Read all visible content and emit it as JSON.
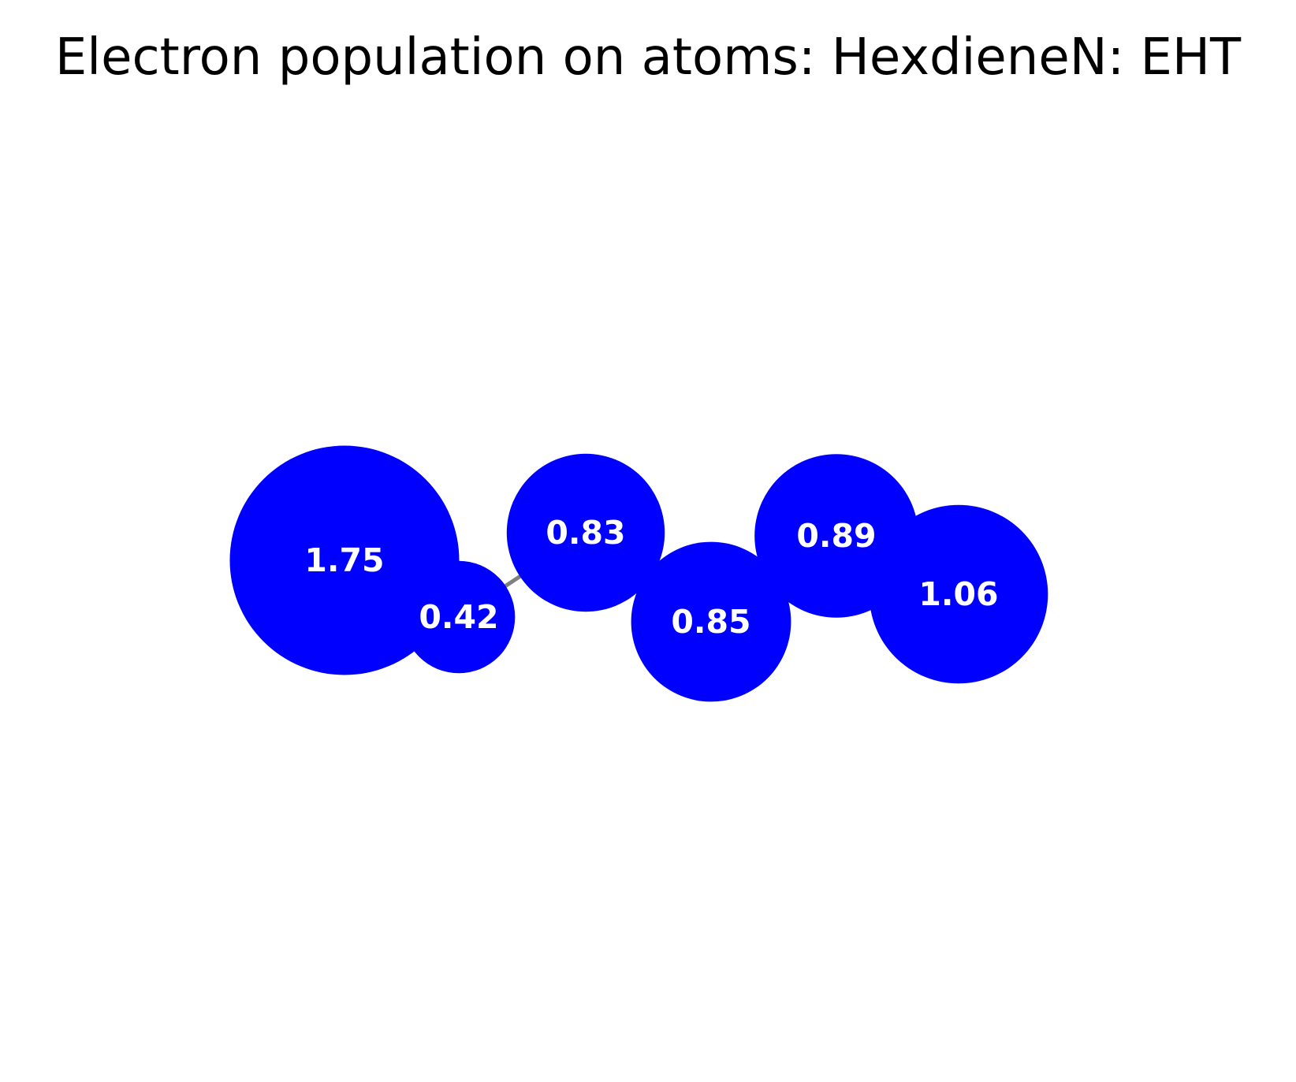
{
  "title": "Electron population on atoms: HexdieneN: EHT",
  "colors": {
    "atom_fill": "#0000ff",
    "bond_stroke": "#808080",
    "label_text": "#ffffff",
    "background": "#ffffff"
  },
  "atoms": [
    {
      "population": 1.75,
      "label": "1.75"
    },
    {
      "population": 0.42,
      "label": "0.42"
    },
    {
      "population": 0.83,
      "label": "0.83"
    },
    {
      "population": 0.85,
      "label": "0.85"
    },
    {
      "population": 0.89,
      "label": "0.89"
    },
    {
      "population": 1.06,
      "label": "1.06"
    }
  ],
  "bonds": [
    [
      0,
      1
    ],
    [
      1,
      2
    ],
    [
      2,
      3
    ],
    [
      3,
      4
    ],
    [
      4,
      5
    ]
  ]
}
